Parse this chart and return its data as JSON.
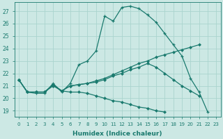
{
  "xlabel": "Humidex (Indice chaleur)",
  "background_color": "#cce8e4",
  "grid_color": "#aad4ce",
  "line_color": "#1a7a6e",
  "xlim": [
    -0.5,
    23.5
  ],
  "ylim": [
    18.5,
    27.7
  ],
  "xticks": [
    0,
    1,
    2,
    3,
    4,
    5,
    6,
    7,
    8,
    9,
    10,
    11,
    12,
    13,
    14,
    15,
    16,
    17,
    18,
    19,
    20,
    21,
    22,
    23
  ],
  "yticks": [
    19,
    20,
    21,
    22,
    23,
    24,
    25,
    26,
    27
  ],
  "series": [
    {
      "x": [
        0,
        1,
        2,
        3,
        4,
        5,
        6,
        7,
        8,
        9,
        10,
        11,
        12,
        13,
        14,
        15,
        16,
        17,
        18,
        19,
        20,
        21,
        22
      ],
      "y": [
        21.5,
        20.5,
        20.4,
        20.4,
        21.2,
        20.5,
        21.2,
        22.7,
        23.0,
        23.8,
        26.6,
        26.2,
        27.3,
        27.4,
        27.2,
        26.7,
        26.1,
        25.2,
        24.3,
        23.4,
        21.6,
        20.5,
        18.9
      ],
      "marker": "+"
    },
    {
      "x": [
        0,
        1,
        2,
        3,
        4,
        5,
        6,
        7,
        8,
        9,
        10,
        11,
        12,
        13,
        14,
        15,
        16,
        17,
        18,
        19,
        20,
        21
      ],
      "y": [
        21.5,
        20.5,
        20.5,
        20.5,
        21.1,
        20.6,
        21.0,
        21.1,
        21.2,
        21.4,
        21.6,
        21.9,
        22.2,
        22.5,
        22.8,
        23.0,
        23.3,
        23.5,
        23.7,
        23.9,
        24.1,
        24.3
      ],
      "marker": "D"
    },
    {
      "x": [
        0,
        1,
        2,
        3,
        4,
        5,
        6,
        7,
        8,
        9,
        10,
        11,
        12,
        13,
        14,
        15,
        16,
        17,
        18,
        19,
        20,
        21
      ],
      "y": [
        21.5,
        20.5,
        20.5,
        20.5,
        21.1,
        20.6,
        21.0,
        21.1,
        21.2,
        21.3,
        21.5,
        21.8,
        22.0,
        22.3,
        22.5,
        22.8,
        22.5,
        22.0,
        21.5,
        21.0,
        20.6,
        20.2
      ],
      "marker": "D"
    },
    {
      "x": [
        0,
        1,
        2,
        3,
        4,
        5,
        6,
        7,
        8,
        9,
        10,
        11,
        12,
        13,
        14,
        15,
        16,
        17
      ],
      "y": [
        21.5,
        20.5,
        20.5,
        20.5,
        21.0,
        20.6,
        20.5,
        20.5,
        20.4,
        20.2,
        20.0,
        19.8,
        19.7,
        19.5,
        19.3,
        19.2,
        19.0,
        18.9
      ],
      "marker": "D"
    }
  ]
}
